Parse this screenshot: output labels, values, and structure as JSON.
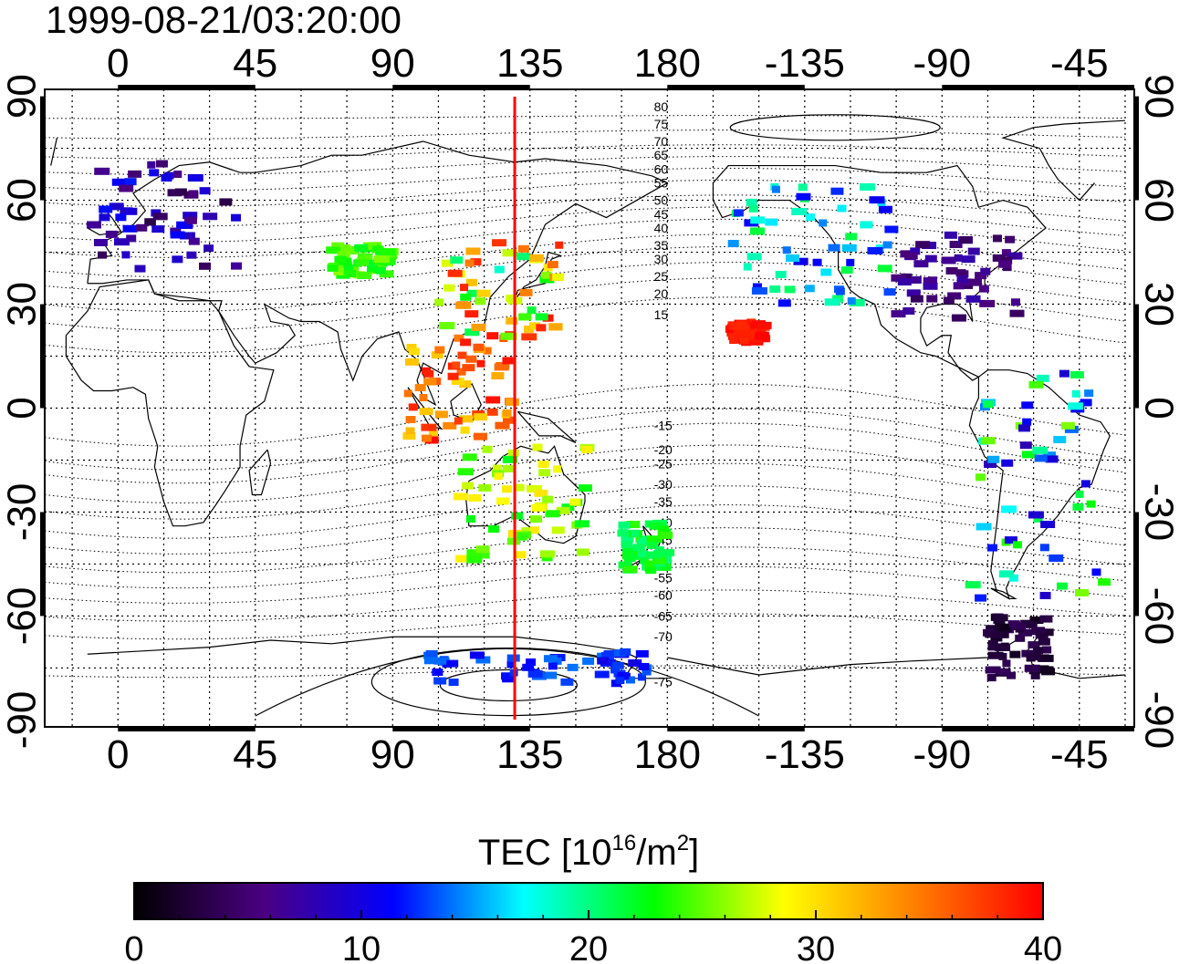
{
  "timestamp": "1999-08-21/03:20:00",
  "axes": {
    "top_ticks": [
      "0",
      "45",
      "90",
      "135",
      "180",
      "-135",
      "-90",
      "-45"
    ],
    "bottom_ticks": [
      "0",
      "45",
      "90",
      "135",
      "180",
      "-135",
      "-90",
      "-45"
    ],
    "left_ticks": [
      "90",
      "60",
      "30",
      "0",
      "-30",
      "-60",
      "-90"
    ],
    "right_ticks": [
      "90",
      "60",
      "30",
      "0",
      "-30",
      "-60",
      "-90"
    ],
    "lon_values": [
      0,
      45,
      90,
      135,
      180,
      225,
      270,
      315
    ],
    "lat_values": [
      90,
      60,
      30,
      0,
      -30,
      -60,
      -90
    ],
    "lon_range": [
      -24,
      333
    ],
    "lat_range": [
      -92,
      92
    ]
  },
  "contour_labels": {
    "values": [
      "80",
      "75",
      "70",
      "65",
      "60",
      "55",
      "50",
      "45",
      "40",
      "35",
      "30",
      "25",
      "20",
      "15",
      "-15",
      "-20",
      "-25",
      "-30",
      "-35",
      "-40",
      "-45",
      "-50",
      "-55",
      "-60",
      "-65",
      "-70",
      "-75"
    ],
    "lats": [
      87,
      82,
      77,
      73,
      69,
      65,
      60,
      56,
      52,
      47,
      43,
      38,
      33,
      27,
      -5,
      -12,
      -16,
      -22,
      -27,
      -33,
      -38,
      -44,
      -49,
      -54,
      -60,
      -66,
      -79
    ]
  },
  "meridian_line": {
    "longitude": 130,
    "color": "#ff0000"
  },
  "colorbar": {
    "title_prefix": "TEC  [10",
    "title_exp1": "16",
    "title_mid": "/m",
    "title_exp2": "2",
    "title_suffix": "]",
    "ticks": [
      "0",
      "10",
      "20",
      "30",
      "40"
    ],
    "tick_values": [
      0,
      10,
      20,
      30,
      40
    ],
    "min": 0,
    "max": 40,
    "colors": [
      "#000000",
      "#4b0082",
      "#0000ff",
      "#00ffff",
      "#00ff00",
      "#ffff00",
      "#ff8000",
      "#ff0000"
    ]
  },
  "chart_data": {
    "type": "scatter",
    "title": "1999-08-21/03:20:00",
    "xlabel": "",
    "ylabel": "",
    "colorbar_label": "TEC [10^16/m^2]",
    "regions": [
      {
        "lon": [
          -10,
          40
        ],
        "lat": [
          40,
          72
        ],
        "tec": [
          3,
          12
        ]
      },
      {
        "lon": [
          70,
          90
        ],
        "lat": [
          38,
          47
        ],
        "tec": [
          22,
          26
        ]
      },
      {
        "lon": [
          105,
          145
        ],
        "lat": [
          20,
          48
        ],
        "tec": [
          18,
          40
        ]
      },
      {
        "lon": [
          95,
          130
        ],
        "lat": [
          -10,
          20
        ],
        "tec": [
          30,
          40
        ]
      },
      {
        "lon": [
          112,
          155
        ],
        "lat": [
          -45,
          -10
        ],
        "tec": [
          22,
          30
        ]
      },
      {
        "lon": [
          165,
          180
        ],
        "lat": [
          -47,
          -33
        ],
        "tec": [
          20,
          24
        ]
      },
      {
        "lon": [
          200,
          212
        ],
        "lat": [
          19,
          25
        ],
        "tec": [
          38,
          40
        ]
      },
      {
        "lon": [
          -160,
          -105
        ],
        "lat": [
          30,
          65
        ],
        "tec": [
          10,
          22
        ]
      },
      {
        "lon": [
          -105,
          -65
        ],
        "lat": [
          25,
          50
        ],
        "tec": [
          4,
          8
        ]
      },
      {
        "lon": [
          -80,
          -35
        ],
        "lat": [
          -55,
          10
        ],
        "tec": [
          8,
          26
        ]
      },
      {
        "lon": [
          -75,
          -55
        ],
        "lat": [
          -78,
          -60
        ],
        "tec": [
          1,
          4
        ]
      },
      {
        "lon": [
          100,
          175
        ],
        "lat": [
          -80,
          -70
        ],
        "tec": [
          10,
          14
        ]
      }
    ],
    "xlim": [
      -24,
      333
    ],
    "ylim": [
      -92,
      92
    ]
  }
}
